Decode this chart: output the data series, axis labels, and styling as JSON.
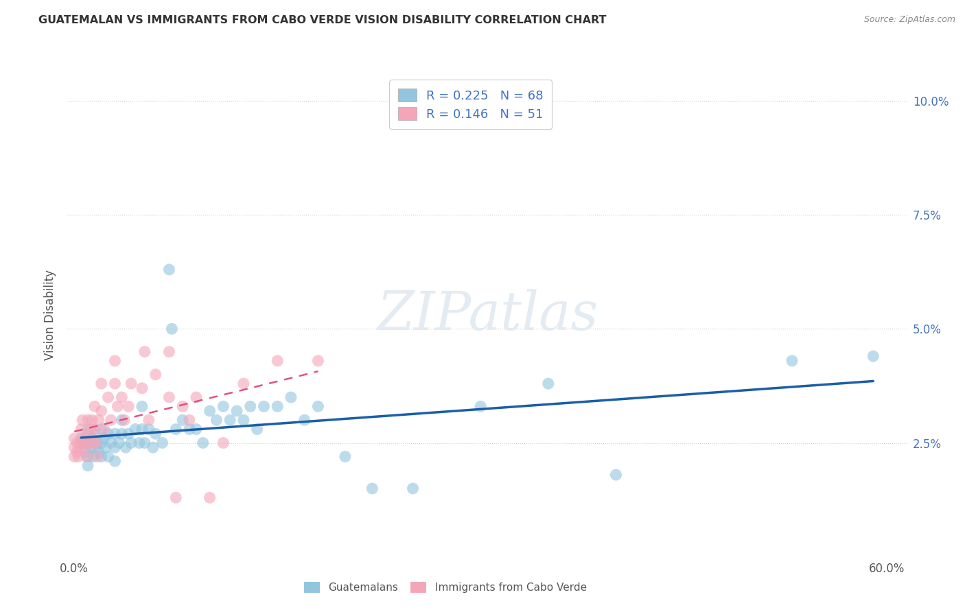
{
  "title": "GUATEMALAN VS IMMIGRANTS FROM CABO VERDE VISION DISABILITY CORRELATION CHART",
  "source": "Source: ZipAtlas.com",
  "ylabel": "Vision Disability",
  "xlim": [
    -0.005,
    0.615
  ],
  "ylim": [
    0.0,
    0.106
  ],
  "xticks": [
    0.0,
    0.1,
    0.2,
    0.3,
    0.4,
    0.5,
    0.6
  ],
  "xticklabels": [
    "0.0%",
    "",
    "",
    "",
    "",
    "",
    "60.0%"
  ],
  "yticks": [
    0.0,
    0.025,
    0.05,
    0.075,
    0.1
  ],
  "yticklabels": [
    "",
    "2.5%",
    "5.0%",
    "7.5%",
    "10.0%"
  ],
  "R_blue": "0.225",
  "N_blue": "68",
  "R_pink": "0.146",
  "N_pink": "51",
  "color_blue": "#92c5de",
  "color_pink": "#f4a6b8",
  "color_blue_line": "#1a5ea8",
  "color_pink_line": "#e05080",
  "legend_label1": "Guatemalans",
  "legend_label2": "Immigrants from Cabo Verde",
  "blue_x": [
    0.005,
    0.007,
    0.008,
    0.01,
    0.01,
    0.01,
    0.01,
    0.012,
    0.013,
    0.014,
    0.015,
    0.015,
    0.017,
    0.018,
    0.02,
    0.02,
    0.02,
    0.022,
    0.023,
    0.025,
    0.025,
    0.027,
    0.03,
    0.03,
    0.03,
    0.033,
    0.035,
    0.035,
    0.038,
    0.04,
    0.042,
    0.045,
    0.048,
    0.05,
    0.05,
    0.052,
    0.055,
    0.058,
    0.06,
    0.065,
    0.07,
    0.072,
    0.075,
    0.08,
    0.085,
    0.09,
    0.095,
    0.1,
    0.105,
    0.11,
    0.115,
    0.12,
    0.125,
    0.13,
    0.135,
    0.14,
    0.15,
    0.16,
    0.17,
    0.18,
    0.2,
    0.22,
    0.25,
    0.3,
    0.35,
    0.4,
    0.53,
    0.59
  ],
  "blue_y": [
    0.026,
    0.025,
    0.023,
    0.028,
    0.025,
    0.022,
    0.02,
    0.024,
    0.026,
    0.022,
    0.027,
    0.024,
    0.025,
    0.023,
    0.028,
    0.025,
    0.022,
    0.026,
    0.024,
    0.027,
    0.022,
    0.025,
    0.027,
    0.024,
    0.021,
    0.025,
    0.03,
    0.027,
    0.024,
    0.027,
    0.025,
    0.028,
    0.025,
    0.033,
    0.028,
    0.025,
    0.028,
    0.024,
    0.027,
    0.025,
    0.063,
    0.05,
    0.028,
    0.03,
    0.028,
    0.028,
    0.025,
    0.032,
    0.03,
    0.033,
    0.03,
    0.032,
    0.03,
    0.033,
    0.028,
    0.033,
    0.033,
    0.035,
    0.03,
    0.033,
    0.022,
    0.015,
    0.015,
    0.033,
    0.038,
    0.018,
    0.043,
    0.044
  ],
  "pink_x": [
    0.0,
    0.0,
    0.0,
    0.002,
    0.002,
    0.003,
    0.004,
    0.005,
    0.005,
    0.006,
    0.007,
    0.008,
    0.009,
    0.01,
    0.01,
    0.01,
    0.012,
    0.013,
    0.014,
    0.015,
    0.015,
    0.016,
    0.017,
    0.018,
    0.02,
    0.02,
    0.022,
    0.025,
    0.027,
    0.03,
    0.03,
    0.032,
    0.035,
    0.037,
    0.04,
    0.042,
    0.05,
    0.052,
    0.055,
    0.06,
    0.07,
    0.07,
    0.075,
    0.08,
    0.085,
    0.09,
    0.1,
    0.11,
    0.125,
    0.15,
    0.18
  ],
  "pink_y": [
    0.026,
    0.024,
    0.022,
    0.025,
    0.023,
    0.022,
    0.024,
    0.028,
    0.025,
    0.03,
    0.026,
    0.024,
    0.022,
    0.03,
    0.027,
    0.025,
    0.028,
    0.03,
    0.025,
    0.033,
    0.028,
    0.025,
    0.022,
    0.03,
    0.038,
    0.032,
    0.028,
    0.035,
    0.03,
    0.043,
    0.038,
    0.033,
    0.035,
    0.03,
    0.033,
    0.038,
    0.037,
    0.045,
    0.03,
    0.04,
    0.045,
    0.035,
    0.013,
    0.033,
    0.03,
    0.035,
    0.013,
    0.025,
    0.038,
    0.043,
    0.043
  ],
  "background_color": "#ffffff",
  "grid_color": "#d0d0d0",
  "watermark": "ZIPatlas"
}
